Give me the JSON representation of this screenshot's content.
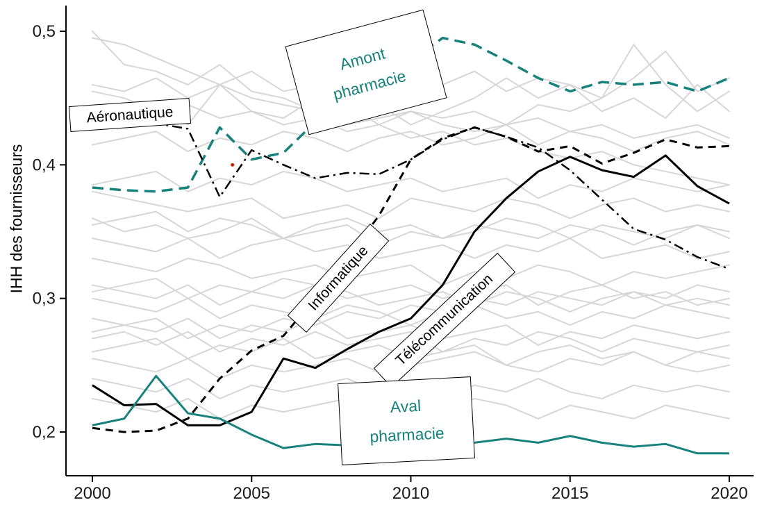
{
  "chart_data": {
    "type": "line",
    "title": "",
    "ylabel": "IHH des fournisseurs",
    "xlabel": "",
    "grid": false,
    "legend_position": "none",
    "xlim": [
      2000,
      2020
    ],
    "ylim": [
      0.175,
      0.515
    ],
    "x": [
      2000,
      2001,
      2002,
      2003,
      2004,
      2005,
      2006,
      2007,
      2008,
      2009,
      2010,
      2011,
      2012,
      2013,
      2014,
      2015,
      2016,
      2017,
      2018,
      2019,
      2020
    ],
    "xticks": [
      {
        "value": 2000,
        "label": "2000"
      },
      {
        "value": 2005,
        "label": "2005"
      },
      {
        "value": 2010,
        "label": "2010"
      },
      {
        "value": 2015,
        "label": "2015"
      },
      {
        "value": 2020,
        "label": "2020"
      }
    ],
    "yticks": [
      {
        "value": 0.2,
        "label": "0,2"
      },
      {
        "value": 0.3,
        "label": "0,3"
      },
      {
        "value": 0.4,
        "label": "0,4"
      },
      {
        "value": 0.5,
        "label": "0,5"
      }
    ],
    "colors": {
      "teal": "#17827b",
      "black": "#000000",
      "gray": "#d6d6d6",
      "red_marker": "#cc2200"
    },
    "series": [
      {
        "name": "Amont pharmacie",
        "color": "#17827b",
        "style": "dashed",
        "dash": "16 9",
        "width": 3.5,
        "values": [
          0.383,
          0.381,
          0.38,
          0.383,
          0.428,
          0.404,
          0.409,
          0.432,
          0.45,
          0.468,
          0.478,
          0.495,
          0.49,
          0.478,
          0.465,
          0.455,
          0.462,
          0.46,
          0.462,
          0.455,
          0.465
        ]
      },
      {
        "name": "Aéronautique",
        "color": "#000000",
        "style": "dash-dot",
        "dash": "14 6 3 6",
        "width": 2.5,
        "values": [
          0.43,
          0.428,
          0.431,
          0.427,
          0.376,
          0.411,
          0.4,
          0.39,
          0.394,
          0.393,
          0.404,
          0.419,
          0.428,
          0.421,
          0.413,
          0.396,
          0.374,
          0.352,
          0.344,
          0.331,
          0.322
        ]
      },
      {
        "name": "Informatique",
        "color": "#000000",
        "style": "dashed",
        "dash": "11 8",
        "width": 3,
        "values": [
          0.203,
          0.2,
          0.201,
          0.21,
          0.24,
          0.261,
          0.272,
          0.3,
          0.33,
          0.362,
          0.404,
          0.42,
          0.428,
          0.421,
          0.41,
          0.414,
          0.401,
          0.409,
          0.419,
          0.413,
          0.414
        ]
      },
      {
        "name": "Télécommunication",
        "color": "#000000",
        "style": "solid",
        "dash": "",
        "width": 3,
        "values": [
          0.235,
          0.22,
          0.221,
          0.205,
          0.205,
          0.215,
          0.255,
          0.248,
          0.262,
          0.275,
          0.285,
          0.31,
          0.35,
          0.375,
          0.395,
          0.406,
          0.396,
          0.391,
          0.407,
          0.384,
          0.371
        ]
      },
      {
        "name": "Aval pharmacie",
        "color": "#17827b",
        "style": "solid",
        "dash": "",
        "width": 3,
        "values": [
          0.205,
          0.21,
          0.242,
          0.214,
          0.21,
          0.198,
          0.188,
          0.191,
          0.19,
          0.19,
          0.191,
          0.19,
          0.192,
          0.195,
          0.192,
          0.197,
          0.192,
          0.189,
          0.191,
          0.184,
          0.184
        ]
      }
    ],
    "background_series": [
      [
        0.5,
        0.475,
        0.47,
        0.46,
        0.475,
        0.455,
        0.45,
        0.44,
        0.445,
        0.43,
        0.44,
        0.435,
        0.44,
        0.43,
        0.445,
        0.44,
        0.45,
        0.49,
        0.46,
        0.44,
        0.455
      ],
      [
        0.43,
        0.44,
        0.445,
        0.43,
        0.46,
        0.44,
        0.435,
        0.45,
        0.44,
        0.445,
        0.43,
        0.44,
        0.45,
        0.465,
        0.45,
        0.46,
        0.44,
        0.45,
        0.435,
        0.46,
        0.44
      ],
      [
        0.38,
        0.375,
        0.37,
        0.365,
        0.37,
        0.375,
        0.36,
        0.365,
        0.37,
        0.36,
        0.375,
        0.37,
        0.365,
        0.375,
        0.37,
        0.36,
        0.37,
        0.375,
        0.365,
        0.37,
        0.365
      ],
      [
        0.36,
        0.35,
        0.355,
        0.345,
        0.35,
        0.36,
        0.345,
        0.35,
        0.355,
        0.34,
        0.35,
        0.345,
        0.355,
        0.35,
        0.345,
        0.355,
        0.35,
        0.34,
        0.35,
        0.355,
        0.345
      ],
      [
        0.345,
        0.34,
        0.335,
        0.345,
        0.33,
        0.34,
        0.345,
        0.335,
        0.34,
        0.33,
        0.335,
        0.34,
        0.33,
        0.34,
        0.335,
        0.345,
        0.33,
        0.335,
        0.34,
        0.33,
        0.335
      ],
      [
        0.33,
        0.325,
        0.32,
        0.33,
        0.325,
        0.315,
        0.32,
        0.325,
        0.315,
        0.32,
        0.325,
        0.31,
        0.32,
        0.315,
        0.325,
        0.32,
        0.31,
        0.32,
        0.315,
        0.32,
        0.325
      ],
      [
        0.305,
        0.31,
        0.315,
        0.3,
        0.31,
        0.305,
        0.315,
        0.31,
        0.3,
        0.305,
        0.31,
        0.3,
        0.305,
        0.31,
        0.295,
        0.305,
        0.31,
        0.3,
        0.305,
        0.295,
        0.3
      ],
      [
        0.3,
        0.295,
        0.29,
        0.3,
        0.285,
        0.295,
        0.29,
        0.285,
        0.295,
        0.29,
        0.28,
        0.29,
        0.295,
        0.285,
        0.29,
        0.28,
        0.29,
        0.285,
        0.295,
        0.29,
        0.285
      ],
      [
        0.285,
        0.28,
        0.275,
        0.285,
        0.27,
        0.28,
        0.275,
        0.285,
        0.27,
        0.275,
        0.28,
        0.27,
        0.275,
        0.28,
        0.265,
        0.275,
        0.27,
        0.28,
        0.275,
        0.27,
        0.275
      ],
      [
        0.26,
        0.265,
        0.27,
        0.255,
        0.265,
        0.26,
        0.27,
        0.255,
        0.26,
        0.265,
        0.255,
        0.26,
        0.265,
        0.25,
        0.26,
        0.265,
        0.255,
        0.26,
        0.25,
        0.26,
        0.255
      ],
      [
        0.255,
        0.25,
        0.245,
        0.255,
        0.24,
        0.25,
        0.245,
        0.25,
        0.255,
        0.245,
        0.25,
        0.255,
        0.26,
        0.25,
        0.245,
        0.255,
        0.25,
        0.26,
        0.25,
        0.245,
        0.25
      ],
      [
        0.24,
        0.235,
        0.23,
        0.24,
        0.225,
        0.235,
        0.23,
        0.235,
        0.24,
        0.23,
        0.235,
        0.225,
        0.235,
        0.23,
        0.24,
        0.23,
        0.225,
        0.235,
        0.23,
        0.235,
        0.23
      ],
      [
        0.225,
        0.22,
        0.215,
        0.225,
        0.21,
        0.22,
        0.215,
        0.22,
        0.225,
        0.215,
        0.22,
        0.215,
        0.225,
        0.22,
        0.21,
        0.22,
        0.215,
        0.21,
        0.22,
        0.215,
        0.21
      ],
      [
        0.46,
        0.455,
        0.465,
        0.45,
        0.46,
        0.47,
        0.455,
        0.46,
        0.45,
        0.465,
        0.455,
        0.46,
        0.47,
        0.455,
        0.465,
        0.46,
        0.45,
        0.465,
        0.485,
        0.455,
        0.465
      ],
      [
        0.415,
        0.42,
        0.425,
        0.41,
        0.42,
        0.415,
        0.425,
        0.42,
        0.41,
        0.42,
        0.425,
        0.415,
        0.42,
        0.43,
        0.415,
        0.425,
        0.42,
        0.41,
        0.42,
        0.425,
        0.415
      ],
      [
        0.495,
        0.49,
        0.48,
        0.47,
        0.46,
        0.45,
        0.445,
        0.44,
        0.43,
        0.435,
        0.44,
        0.43,
        0.425,
        0.43,
        0.435,
        0.425,
        0.43,
        0.42,
        0.425,
        0.43,
        0.42
      ],
      [
        0.385,
        0.39,
        0.395,
        0.38,
        0.39,
        0.385,
        0.395,
        0.39,
        0.38,
        0.385,
        0.39,
        0.38,
        0.385,
        0.39,
        0.375,
        0.385,
        0.38,
        0.39,
        0.385,
        0.38,
        0.385
      ],
      [
        0.275,
        0.28,
        0.285,
        0.27,
        0.28,
        0.275,
        0.285,
        0.28,
        0.29,
        0.285,
        0.295,
        0.29,
        0.3,
        0.295,
        0.305,
        0.3,
        0.295,
        0.305,
        0.3,
        0.31,
        0.305
      ],
      [
        0.355,
        0.36,
        0.365,
        0.35,
        0.36,
        0.355,
        0.345,
        0.355,
        0.36,
        0.35,
        0.355,
        0.345,
        0.35,
        0.36,
        0.355,
        0.345,
        0.355,
        0.35,
        0.345,
        0.355,
        0.35
      ],
      [
        0.31,
        0.305,
        0.3,
        0.31,
        0.295,
        0.305,
        0.3,
        0.31,
        0.305,
        0.295,
        0.3,
        0.305,
        0.295,
        0.305,
        0.3,
        0.29,
        0.3,
        0.305,
        0.295,
        0.3,
        0.295
      ],
      [
        0.27,
        0.275,
        0.265,
        0.275,
        0.26,
        0.27,
        0.265,
        0.275,
        0.265,
        0.27,
        0.275,
        0.26,
        0.27,
        0.265,
        0.275,
        0.27,
        0.26,
        0.27,
        0.265,
        0.26,
        0.265
      ],
      [
        0.455,
        0.45,
        0.44,
        0.445,
        0.435,
        0.44,
        0.43,
        0.435,
        0.425,
        0.43,
        0.42,
        0.425,
        0.415,
        0.42,
        0.41,
        0.405,
        0.41,
        0.4,
        0.395,
        0.39,
        0.385
      ]
    ],
    "marker": {
      "x": 2004.4,
      "y": 0.4,
      "color": "#cc2200"
    },
    "annotations": {
      "aeronautique": "Aéronautique",
      "amont_pharmacie": "Amont pharmacie",
      "informatique": "Informatique",
      "telecommunication": "Télécommunication",
      "aval_pharmacie": "Aval pharmacie"
    }
  }
}
